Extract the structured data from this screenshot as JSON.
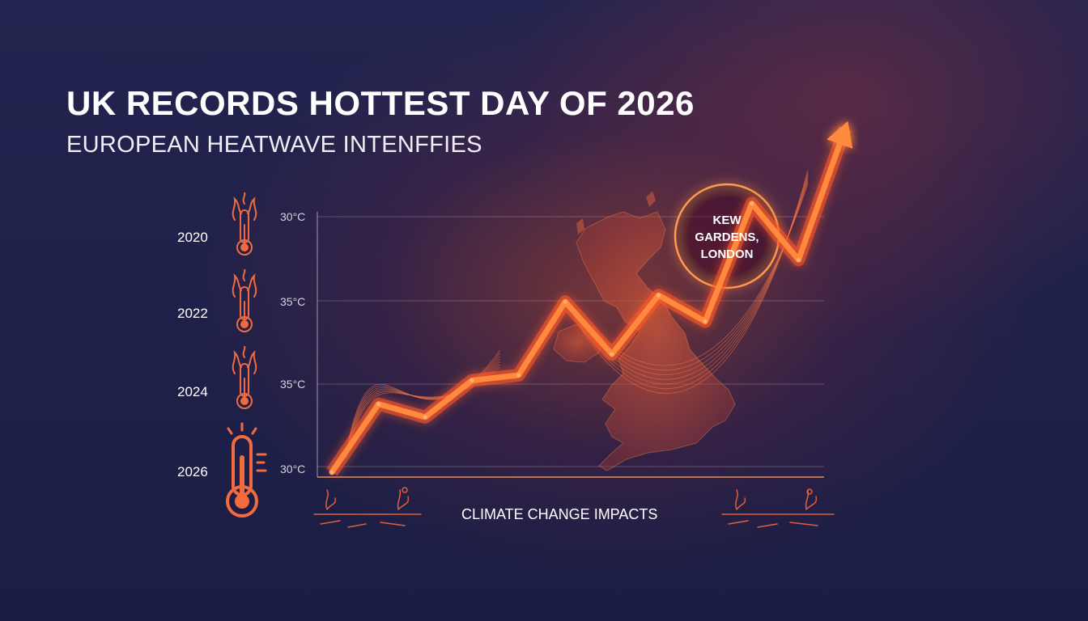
{
  "header": {
    "title": "UK RECORDS HOTTEST DAY OF 2026",
    "subtitle": "EUROPEAN HEATWAVE INTENFFIES"
  },
  "timeline": {
    "years": [
      "2020",
      "2022",
      "2024",
      "2026"
    ]
  },
  "callout": {
    "line1": "KEW",
    "line2": "GARDENS,",
    "line3": "LONDON"
  },
  "footer": {
    "label": "CLIMATE CHANGE IMPACTS"
  },
  "colors": {
    "background": "#1d1f48",
    "accent": "#ff8a3d",
    "glow": "#ff5a2a",
    "thermometer": "#f26b3f",
    "map": "#d9563a"
  },
  "icons": [
    "flame-thermometer-icon",
    "thermometer-icon",
    "uk-map",
    "arrow-head-icon",
    "plant-icon"
  ],
  "chart_data": {
    "type": "line",
    "title": "UK RECORDS HOTTEST DAY OF 2026",
    "ytick_labels": [
      "30°C",
      "35°C",
      "35°C",
      "30°C"
    ],
    "grid": true,
    "series": [
      {
        "values": [
          [
            0,
            0.0
          ],
          [
            1,
            0.52
          ],
          [
            2,
            0.42
          ],
          [
            3,
            0.7
          ],
          [
            4,
            0.74
          ],
          [
            5,
            1.3
          ],
          [
            6,
            0.9
          ],
          [
            7,
            1.35
          ],
          [
            8,
            1.15
          ],
          [
            9,
            2.05
          ],
          [
            10,
            1.62
          ],
          [
            11,
            2.62
          ]
        ]
      }
    ]
  }
}
